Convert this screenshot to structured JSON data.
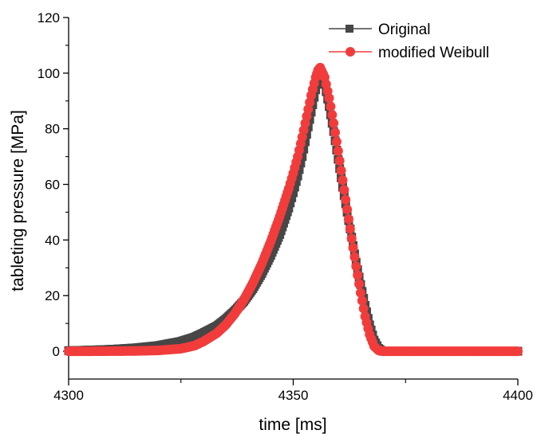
{
  "chart_data": {
    "type": "line",
    "xlabel": "time [ms]",
    "ylabel": "tableting pressure [MPa]",
    "xlim": [
      4300,
      4400
    ],
    "ylim": [
      -10,
      120
    ],
    "x_ticks": [
      4300,
      4350,
      4400
    ],
    "x_tick_labels": [
      "4300",
      "4350",
      "4400"
    ],
    "y_ticks": [
      0,
      20,
      40,
      60,
      80,
      100,
      120
    ],
    "y_tick_labels": [
      "0",
      "20",
      "40",
      "60",
      "80",
      "100",
      "120"
    ],
    "grid": false,
    "legend_position": "top-right",
    "series": [
      {
        "name": "Original",
        "color": "#474747",
        "marker": "square",
        "x": [
          4300,
          4305,
          4310,
          4315,
          4320,
          4325,
          4328,
          4330,
          4333,
          4335,
          4337,
          4339,
          4341,
          4343,
          4345,
          4347,
          4349,
          4350,
          4351,
          4352,
          4353,
          4354,
          4355,
          4355.5,
          4356,
          4357,
          4358,
          4359,
          4360,
          4361,
          4362,
          4363,
          4364,
          4365,
          4366,
          4367,
          4368,
          4369,
          4369.5,
          4370,
          4375,
          4380,
          4385,
          4390,
          4395,
          4400
        ],
        "y": [
          0.2,
          0.4,
          0.7,
          1.2,
          2.0,
          3.5,
          5.0,
          6.5,
          9.0,
          11.5,
          14.5,
          18.0,
          22.5,
          28.0,
          34.5,
          42.0,
          51.5,
          57.0,
          63.0,
          70.0,
          78.0,
          86.0,
          94.0,
          98.0,
          100.0,
          96.0,
          88.0,
          79.0,
          69.0,
          59.0,
          50.0,
          41.0,
          32.0,
          24.0,
          16.5,
          9.5,
          4.0,
          1.0,
          0.3,
          0.0,
          0.0,
          0.0,
          0.0,
          0.0,
          0.0,
          0.0
        ]
      },
      {
        "name": "modified Weibull",
        "color": "#f23c3c",
        "marker": "circle",
        "x": [
          4300,
          4305,
          4310,
          4315,
          4320,
          4325,
          4328,
          4330,
          4333,
          4335,
          4337,
          4339,
          4341,
          4343,
          4345,
          4347,
          4349,
          4350,
          4351,
          4352,
          4353,
          4354,
          4355,
          4355.5,
          4356,
          4357,
          4358,
          4359,
          4360,
          4361,
          4362,
          4363,
          4364,
          4365,
          4366,
          4367,
          4368,
          4369,
          4370,
          4375,
          4380,
          4385,
          4390,
          4395,
          4400
        ],
        "y": [
          0.0,
          0.0,
          0.05,
          0.1,
          0.3,
          0.9,
          2.0,
          3.5,
          6.5,
          9.5,
          13.5,
          18.5,
          24.5,
          31.5,
          39.5,
          48.5,
          58.5,
          64.0,
          70.0,
          77.0,
          84.5,
          92.0,
          98.5,
          101.0,
          102.0,
          98.5,
          91.0,
          82.0,
          72.0,
          61.5,
          51.0,
          40.5,
          30.5,
          21.0,
          12.5,
          6.0,
          1.8,
          0.3,
          0.0,
          0.0,
          0.0,
          0.0,
          0.0,
          0.0,
          0.0
        ]
      }
    ]
  }
}
